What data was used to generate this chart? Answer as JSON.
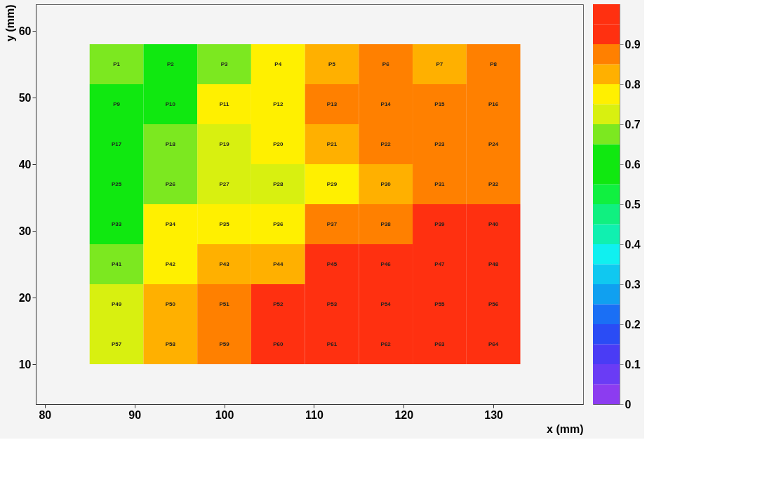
{
  "chart_data": {
    "type": "heatmap",
    "xlabel": "x (mm)",
    "ylabel": "y (mm)",
    "x": [
      88,
      94,
      100,
      106,
      112,
      118,
      124,
      130
    ],
    "y": [
      55,
      49,
      43,
      37,
      31,
      25,
      19,
      13
    ],
    "cells": [
      [
        0.67,
        0.62,
        0.67,
        0.77,
        0.82,
        0.87,
        0.82,
        0.87
      ],
      [
        0.62,
        0.62,
        0.77,
        0.77,
        0.87,
        0.87,
        0.87,
        0.87
      ],
      [
        0.62,
        0.67,
        0.72,
        0.77,
        0.82,
        0.87,
        0.87,
        0.87
      ],
      [
        0.62,
        0.67,
        0.72,
        0.72,
        0.77,
        0.82,
        0.87,
        0.87
      ],
      [
        0.62,
        0.77,
        0.77,
        0.77,
        0.87,
        0.87,
        0.95,
        0.95
      ],
      [
        0.67,
        0.77,
        0.82,
        0.82,
        0.95,
        0.95,
        0.95,
        0.95
      ],
      [
        0.72,
        0.82,
        0.87,
        0.95,
        0.95,
        0.95,
        0.95,
        0.95
      ],
      [
        0.72,
        0.82,
        0.87,
        0.95,
        0.95,
        0.95,
        0.95,
        0.95
      ]
    ],
    "cell_labels": [
      [
        "P1",
        "P2",
        "P3",
        "P4",
        "P5",
        "P6",
        "P7",
        "P8"
      ],
      [
        "P9",
        "P10",
        "P11",
        "P12",
        "P13",
        "P14",
        "P15",
        "P16"
      ],
      [
        "P17",
        "P18",
        "P19",
        "P20",
        "P21",
        "P22",
        "P23",
        "P24"
      ],
      [
        "P25",
        "P26",
        "P27",
        "P28",
        "P29",
        "P30",
        "P31",
        "P32"
      ],
      [
        "P33",
        "P34",
        "P35",
        "P36",
        "P37",
        "P38",
        "P39",
        "P40"
      ],
      [
        "P41",
        "P42",
        "P43",
        "P44",
        "P45",
        "P46",
        "P47",
        "P48"
      ],
      [
        "P49",
        "P50",
        "P51",
        "P52",
        "P53",
        "P54",
        "P55",
        "P56"
      ],
      [
        "P57",
        "P58",
        "P59",
        "P60",
        "P61",
        "P62",
        "P63",
        "P64"
      ]
    ],
    "xlim": [
      79,
      140
    ],
    "xticks": [
      80,
      90,
      100,
      110,
      120,
      130
    ],
    "ylim": [
      4,
      64
    ],
    "yticks": [
      10,
      20,
      30,
      40,
      50,
      60
    ],
    "clim": [
      0,
      1
    ],
    "cticks": [
      0,
      0.1,
      0.2,
      0.3,
      0.4,
      0.5,
      0.6,
      0.7,
      0.8,
      0.9
    ],
    "colors": [
      "#8c3cf0",
      "#6a3cf5",
      "#4a3cf5",
      "#2a4cf5",
      "#1a6ff5",
      "#10a0f0",
      "#10c8f0",
      "#10f0f0",
      "#10f0b0",
      "#10f080",
      "#10f040",
      "#10e810",
      "#10e810",
      "#7ce820",
      "#d8f010",
      "#fff000",
      "#ffb000",
      "#ff8000",
      "#ff3010",
      "#ff3010"
    ],
    "grid": false
  }
}
